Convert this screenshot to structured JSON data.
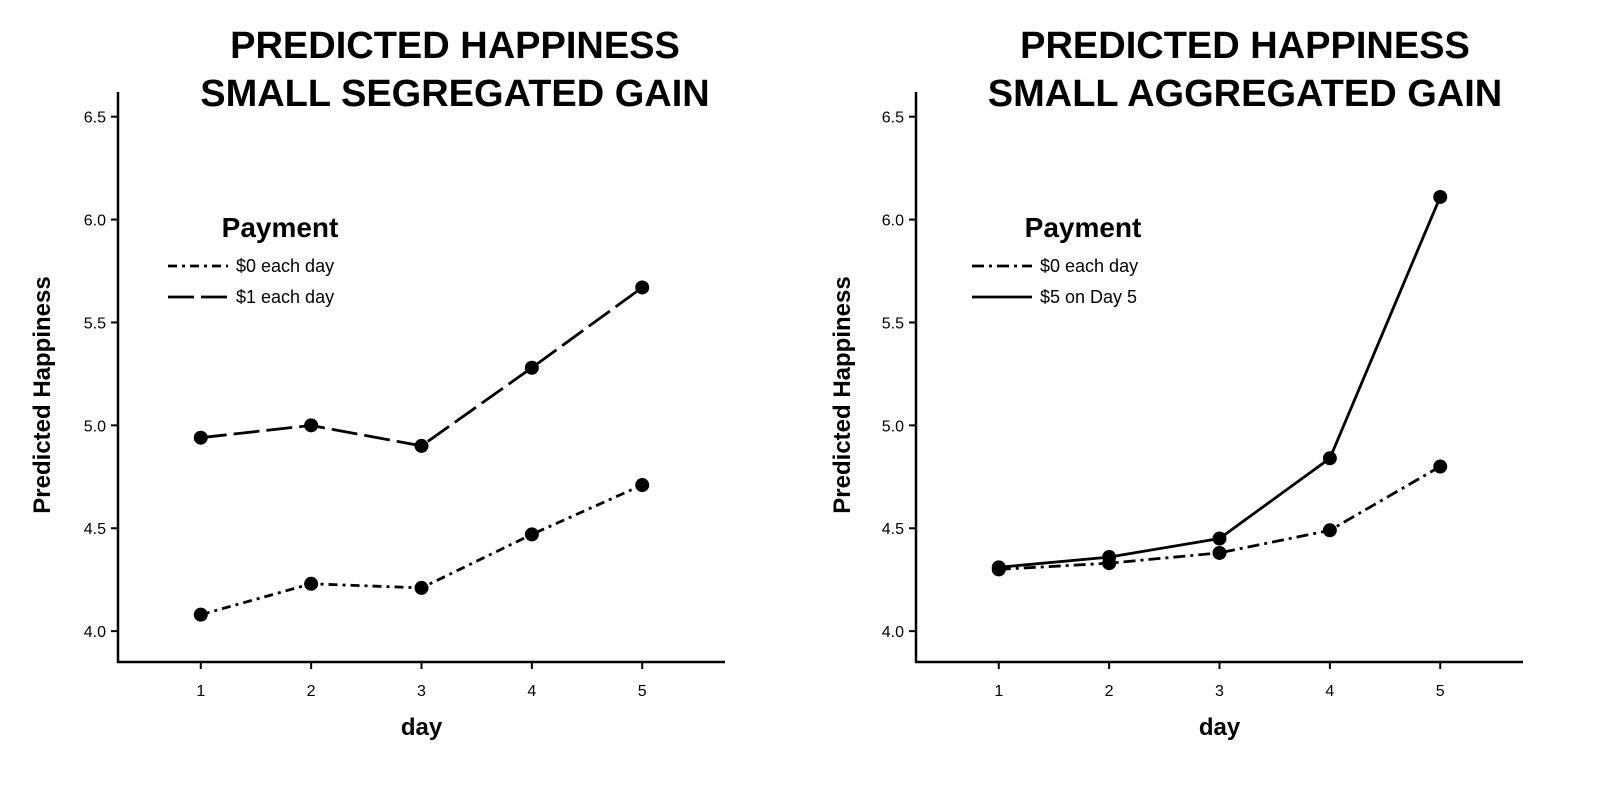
{
  "chart_data": [
    {
      "type": "line",
      "title": [
        "PREDICTED HAPPINESS",
        "SMALL SEGREGATED GAIN"
      ],
      "xlabel": "day",
      "ylabel": "Predicted Happiness",
      "x": [
        1,
        2,
        3,
        4,
        5
      ],
      "xlim": [
        0.25,
        5.75
      ],
      "ylim": [
        3.85,
        6.62
      ],
      "yticks": [
        "4.0",
        "4.5",
        "5.0",
        "5.5",
        "6.0",
        "6.5"
      ],
      "grid": false,
      "legend": {
        "title": "Payment",
        "placement": "top-left"
      },
      "series": [
        {
          "name": "$0 each day",
          "style": "short-dash-dot",
          "values": [
            4.08,
            4.23,
            4.21,
            4.47,
            4.71
          ]
        },
        {
          "name": "$1 each day",
          "style": "long-dash",
          "values": [
            4.94,
            5.0,
            4.9,
            5.28,
            5.67
          ]
        }
      ]
    },
    {
      "type": "line",
      "title": [
        "PREDICTED HAPPINESS",
        "SMALL AGGREGATED GAIN"
      ],
      "xlabel": "day",
      "ylabel": "Predicted Happiness",
      "x": [
        1,
        2,
        3,
        4,
        5
      ],
      "xlim": [
        0.25,
        5.75
      ],
      "ylim": [
        3.85,
        6.62
      ],
      "yticks": [
        "4.0",
        "4.5",
        "5.0",
        "5.5",
        "6.0",
        "6.5"
      ],
      "grid": false,
      "legend": {
        "title": "Payment",
        "placement": "top-left"
      },
      "series": [
        {
          "name": "$0 each day",
          "style": "dash-dot",
          "values": [
            4.3,
            4.33,
            4.38,
            4.49,
            4.8
          ]
        },
        {
          "name": "$5 on Day 5",
          "style": "solid",
          "values": [
            4.31,
            4.36,
            4.45,
            4.84,
            6.11
          ]
        }
      ]
    }
  ]
}
